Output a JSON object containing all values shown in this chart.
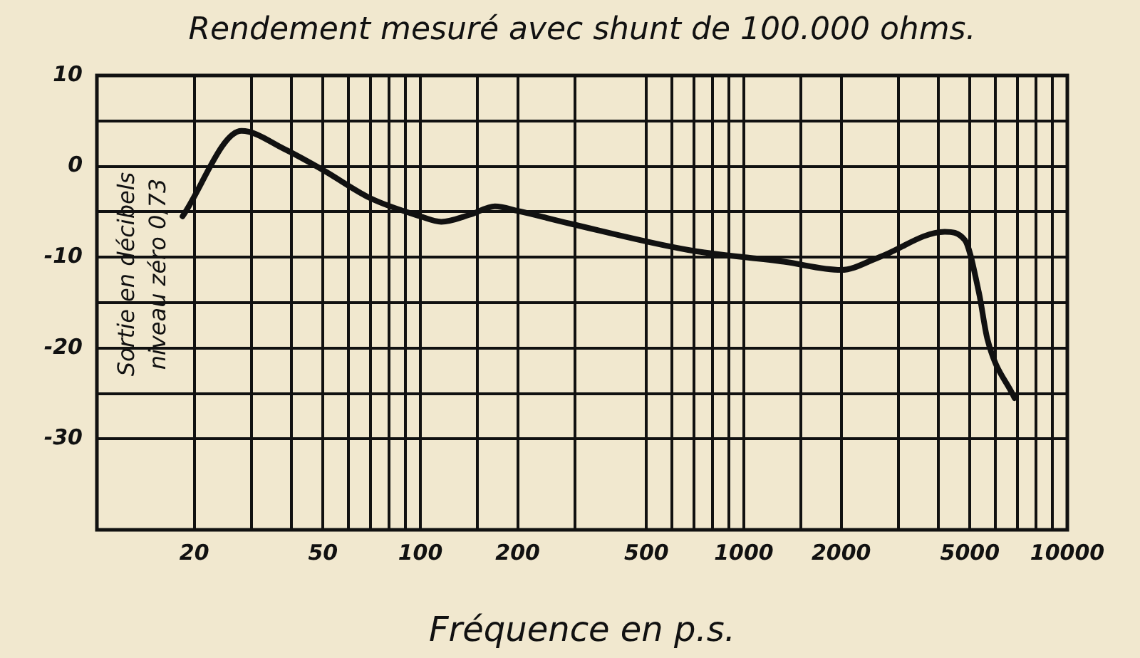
{
  "chart_data": {
    "type": "line",
    "title": "Rendement mesuré avec shunt de 100.000 ohms.",
    "xlabel": "Fréquence en p.s.",
    "ylabel": "Sortie en décibels\nniveau zéro 0,73",
    "log": "x",
    "grid": true,
    "marker": "none",
    "line_style": "solid",
    "xlim": [
      10,
      10000
    ],
    "ylim": [
      -40,
      10
    ],
    "xticks": [
      20,
      {
        "value": 30,
        "label": null
      },
      {
        "value": 40,
        "label": null
      },
      50,
      {
        "value": 60,
        "label": null
      },
      {
        "value": 70,
        "label": null
      },
      {
        "value": 80,
        "label": null
      },
      {
        "value": 90,
        "label": null
      },
      100,
      {
        "value": 150,
        "label": null
      },
      200,
      {
        "value": 300,
        "label": null
      },
      500,
      {
        "value": 600,
        "label": null
      },
      {
        "value": 700,
        "label": null
      },
      {
        "value": 800,
        "label": null
      },
      {
        "value": 900,
        "label": null
      },
      1000,
      {
        "value": 1500,
        "label": null
      },
      2000,
      {
        "value": 3000,
        "label": null
      },
      {
        "value": 4000,
        "label": null
      },
      5000,
      {
        "value": 6000,
        "label": null
      },
      {
        "value": 7000,
        "label": null
      },
      {
        "value": 8000,
        "label": null
      },
      {
        "value": 9000,
        "label": null
      },
      10000
    ],
    "yticks": [
      10,
      {
        "value": 5,
        "label": null
      },
      0,
      {
        "value": -5,
        "label": null
      },
      -10,
      {
        "value": -15,
        "label": null
      },
      -20,
      {
        "value": -25,
        "label": null
      },
      -30
    ],
    "x": [
      18.4,
      28,
      38,
      50,
      70,
      100,
      116,
      143,
      170,
      200,
      290,
      673,
      1330,
      2000,
      2620,
      4180,
      4820,
      5330,
      5660,
      6870
    ],
    "series": [
      {
        "color": "#111111",
        "values": [
          -5.5,
          3.9,
          1.9,
          -0.4,
          -3.5,
          -5.5,
          -6.1,
          -5.3,
          -4.4,
          -4.9,
          -6.3,
          -9.2,
          -10.5,
          -11.4,
          -10,
          -7.2,
          -8.1,
          -13.9,
          -19,
          -25.5
        ]
      }
    ]
  }
}
